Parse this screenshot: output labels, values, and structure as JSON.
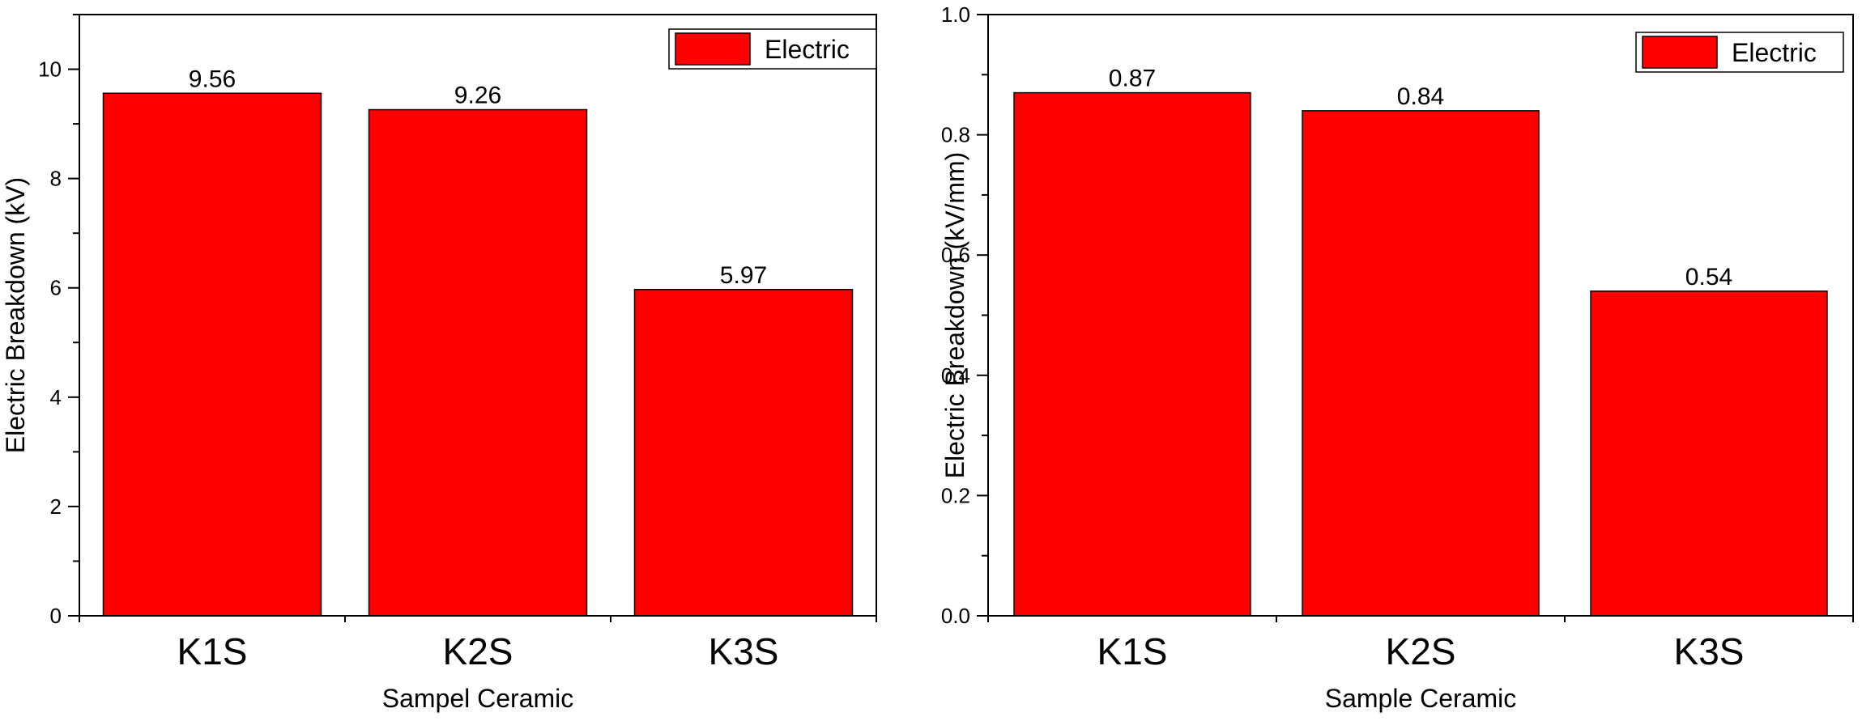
{
  "chart_data": [
    {
      "type": "bar",
      "categories": [
        "K1S",
        "K2S",
        "K3S"
      ],
      "series": [
        {
          "name": "Electric",
          "values": [
            9.56,
            9.26,
            5.97
          ],
          "color": "#ff0000"
        }
      ],
      "value_labels": [
        "9.56",
        "9.26",
        "5.97"
      ],
      "xlabel": "Sampel  Ceramic",
      "ylabel": "Electric Breakdown (kV)",
      "ylim": [
        0,
        11
      ],
      "yticks": [
        0,
        2,
        4,
        6,
        8,
        10
      ],
      "ytick_labels": [
        "0",
        "2",
        "4",
        "6",
        "8",
        "10"
      ],
      "grid": false,
      "legend_position": "top-right"
    },
    {
      "type": "bar",
      "categories": [
        "K1S",
        "K2S",
        "K3S"
      ],
      "series": [
        {
          "name": "Electric",
          "values": [
            0.87,
            0.84,
            0.54
          ],
          "color": "#ff0000"
        }
      ],
      "value_labels": [
        "0.87",
        "0.84",
        "0.54"
      ],
      "xlabel": "Sample Ceramic",
      "ylabel": "Electric Breakdown (kV/mm)",
      "ylim": [
        0,
        1.0
      ],
      "yticks": [
        0,
        0.2,
        0.4,
        0.6,
        0.8,
        1.0
      ],
      "ytick_labels": [
        "0.0",
        "0.2",
        "0.4",
        "0.6",
        "0.8",
        "1.0"
      ],
      "grid": false,
      "legend_position": "top-right"
    }
  ]
}
